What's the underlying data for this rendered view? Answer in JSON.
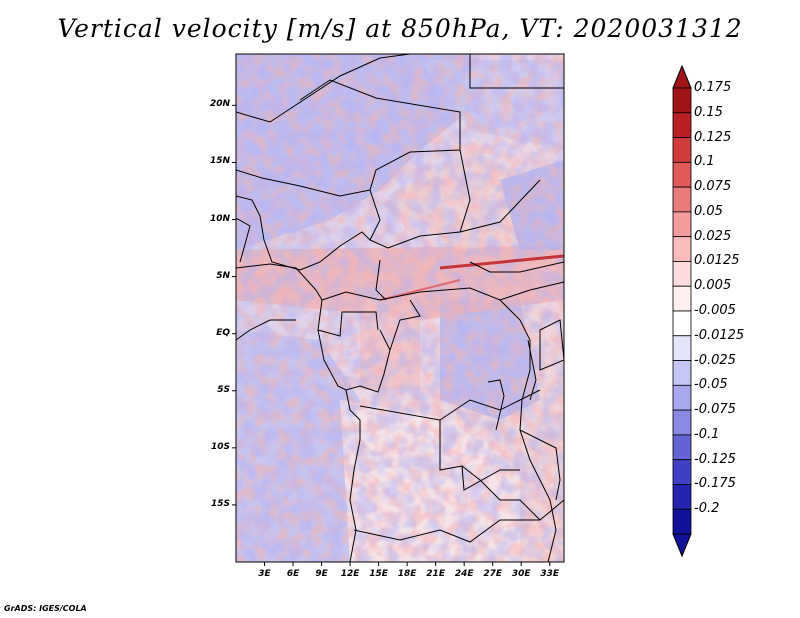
{
  "title": "Vertical velocity [m/s] at 850hPa, VT: 2020031312",
  "footer": "GrADS: IGES/COLA",
  "map": {
    "region": "Central Africa",
    "lat_range": [
      -20,
      24.5
    ],
    "lon_range": [
      0,
      34.5
    ],
    "lat_ticks": [
      "20N",
      "15N",
      "10N",
      "5N",
      "EQ",
      "5S",
      "10S",
      "15S"
    ],
    "lat_values": [
      20,
      15,
      10,
      5,
      0,
      -5,
      -10,
      -15
    ],
    "lon_ticks": [
      "3E",
      "6E",
      "9E",
      "12E",
      "15E",
      "18E",
      "21E",
      "24E",
      "27E",
      "30E",
      "33E"
    ],
    "lon_values": [
      3,
      6,
      9,
      12,
      15,
      18,
      21,
      24,
      27,
      30,
      33
    ]
  },
  "colorbar": {
    "labels": [
      "0.175",
      "0.15",
      "0.125",
      "0.1",
      "0.075",
      "0.05",
      "0.025",
      "0.0125",
      "0.005",
      "-0.005",
      "-0.0125",
      "-0.025",
      "-0.05",
      "-0.075",
      "-0.1",
      "-0.125",
      "-0.175",
      "-0.2"
    ],
    "colors": [
      "#a01418",
      "#b82024",
      "#d03c3c",
      "#e05a5a",
      "#ea7b7b",
      "#f29c9c",
      "#f8bcbc",
      "#fcdcdc",
      "#fff0f0",
      "#ffffff",
      "#e4e4fa",
      "#c6c6f4",
      "#a8a8ee",
      "#8a8ae4",
      "#6464d6",
      "#4040c4",
      "#2424b0",
      "#101098"
    ],
    "top_color": "#a01418",
    "bottom_color": "#101098"
  }
}
